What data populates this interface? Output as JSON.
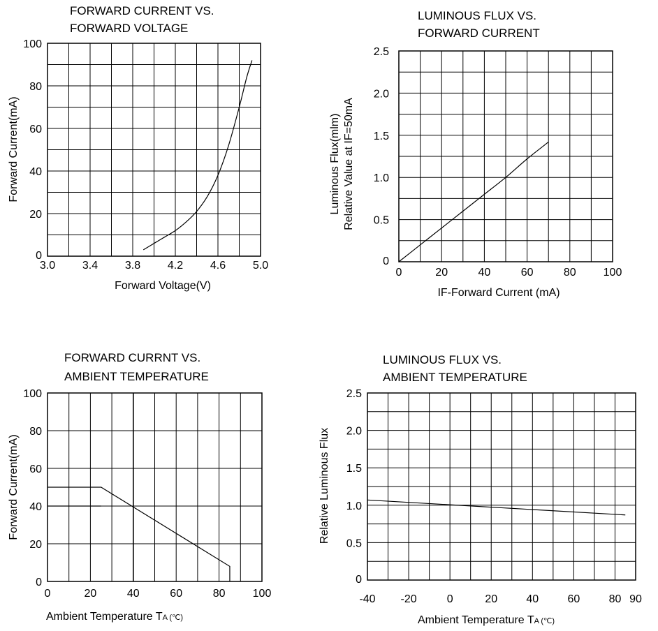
{
  "chart_data": [
    {
      "type": "line",
      "title_line1": "FORWARD CURRENT VS.",
      "title_line2": "FORWARD VOLTAGE",
      "xlabel": "Forward Voltage(V)",
      "ylabel": "Forward Current(mA)",
      "xlim": [
        3.0,
        5.0
      ],
      "ylim": [
        0,
        100
      ],
      "x_ticks": [
        "3.0",
        "3.4",
        "3.8",
        "4.2",
        "4.6",
        "5.0"
      ],
      "y_ticks": [
        "0",
        "20",
        "40",
        "60",
        "80",
        "100"
      ],
      "grid": true,
      "series": [
        {
          "x": [
            3.9,
            4.0,
            4.1,
            4.2,
            4.3,
            4.4,
            4.5,
            4.6,
            4.7,
            4.8,
            4.87,
            4.92
          ],
          "y": [
            3,
            6,
            9,
            12,
            16,
            21,
            28,
            38,
            52,
            70,
            84,
            92
          ]
        }
      ]
    },
    {
      "type": "line",
      "title_line1": "LUMINOUS FLUX VS.",
      "title_line2": "FORWARD CURRENT",
      "xlabel": "IF-Forward Current (mA)",
      "ylabel_line1": "Luminous Flux(mlm)",
      "ylabel_line2": "Relative Value at IF=50mA",
      "xlim": [
        0,
        100
      ],
      "ylim": [
        0,
        2.5
      ],
      "x_ticks": [
        "0",
        "20",
        "40",
        "60",
        "80",
        "100"
      ],
      "y_ticks": [
        "0",
        "0.5",
        "1.0",
        "1.5",
        "2.0",
        "2.5"
      ],
      "grid": true,
      "series": [
        {
          "x": [
            0,
            10,
            20,
            30,
            40,
            50,
            60,
            70
          ],
          "y": [
            0,
            0.2,
            0.4,
            0.6,
            0.8,
            1.0,
            1.22,
            1.42
          ]
        }
      ]
    },
    {
      "type": "line",
      "title_line1": "FORWARD CURRNT VS.",
      "title_line2": "AMBIENT TEMPERATURE",
      "xlabel_main": "Ambient Temperature T",
      "xlabel_sub": "A (℃)",
      "ylabel": "Forward Current(mA)",
      "xlim": [
        0,
        100
      ],
      "ylim": [
        0,
        100
      ],
      "x_ticks": [
        "0",
        "20",
        "40",
        "60",
        "80",
        "100"
      ],
      "y_ticks": [
        "0",
        "20",
        "40",
        "60",
        "80",
        "100"
      ],
      "grid": true,
      "series": [
        {
          "x": [
            0,
            25,
            85,
            85
          ],
          "y": [
            50,
            50,
            8,
            0
          ]
        },
        {
          "x": [
            0,
            25
          ],
          "y": [
            40,
            40
          ]
        }
      ]
    },
    {
      "type": "line",
      "title_line1": "LUMINOUS FLUX VS.",
      "title_line2": "AMBIENT TEMPERATURE",
      "xlabel_main": "Ambient Temperature T",
      "xlabel_sub": "A (℃)",
      "ylabel": "Relative Luminous Flux",
      "xlim": [
        -40,
        90
      ],
      "ylim": [
        0,
        2.5
      ],
      "x_ticks": [
        "-40",
        "-20",
        "0",
        "20",
        "40",
        "60",
        "80",
        "90"
      ],
      "y_ticks": [
        "0",
        "0.5",
        "1.0",
        "1.5",
        "2.0",
        "2.5"
      ],
      "grid": true,
      "series": [
        {
          "x": [
            -40,
            85
          ],
          "y": [
            1.07,
            0.87
          ]
        }
      ]
    }
  ]
}
